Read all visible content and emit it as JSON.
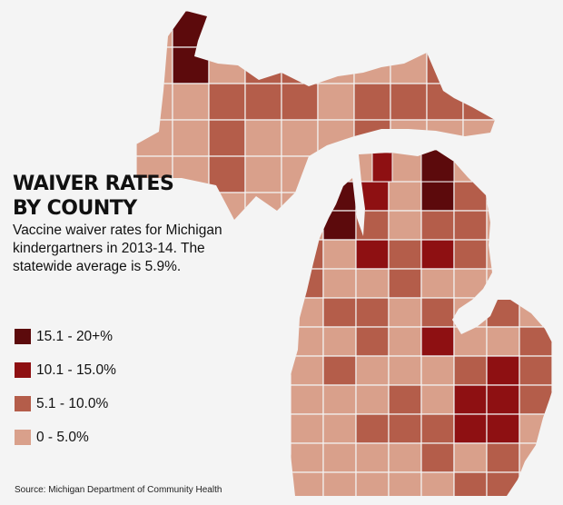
{
  "title": "WAIVER RATES BY COUNTY",
  "subtitle": "Vaccine waiver rates for Michigan kindergartners in 2013-14. The statewide average is 5.9%.",
  "legend": [
    {
      "label": "15.1 - 20+%",
      "color": "#5c0a0c"
    },
    {
      "label": "10.1 - 15.0%",
      "color": "#8e1012"
    },
    {
      "label": "5.1 - 10.0%",
      "color": "#b45d4a"
    },
    {
      "label": "0 - 5.0%",
      "color": "#d9a08b"
    }
  ],
  "source": "Source: Michigan Department of Community Health",
  "map": {
    "region": "Michigan",
    "category_order": [
      "0 - 5.0%",
      "5.1 - 10.0%",
      "10.1 - 15.0%",
      "15.1 - 20+%"
    ],
    "upper_peninsula_categories": [
      [
        0,
        3,
        0,
        0,
        0,
        0,
        0,
        0,
        0,
        0
      ],
      [
        0,
        3,
        0,
        1,
        1,
        0,
        0,
        0,
        1,
        0
      ],
      [
        0,
        0,
        1,
        1,
        1,
        0,
        1,
        1,
        1,
        1
      ],
      [
        0,
        0,
        1,
        0,
        0,
        0,
        1,
        0,
        0,
        0
      ],
      [
        0,
        0,
        1,
        0,
        0,
        0,
        0,
        0,
        0,
        0
      ],
      [
        0,
        0,
        0,
        0,
        0,
        0,
        0,
        0,
        0,
        0
      ]
    ],
    "lower_peninsula_categories": [
      [
        0,
        3,
        2,
        0,
        3,
        1,
        0,
        0
      ],
      [
        0,
        3,
        1,
        0,
        1,
        1,
        0,
        0
      ],
      [
        1,
        0,
        2,
        1,
        2,
        1,
        0,
        0
      ],
      [
        1,
        0,
        0,
        1,
        0,
        0,
        0,
        0
      ],
      [
        0,
        1,
        1,
        0,
        1,
        0,
        1,
        0
      ],
      [
        0,
        0,
        1,
        0,
        2,
        0,
        0,
        1
      ],
      [
        0,
        1,
        0,
        0,
        0,
        1,
        2,
        1
      ],
      [
        0,
        0,
        0,
        1,
        0,
        2,
        2,
        1
      ],
      [
        0,
        0,
        1,
        1,
        1,
        2,
        2,
        0
      ],
      [
        0,
        0,
        0,
        0,
        1,
        0,
        1,
        0
      ],
      [
        0,
        0,
        0,
        0,
        0,
        1,
        1,
        0
      ]
    ]
  }
}
